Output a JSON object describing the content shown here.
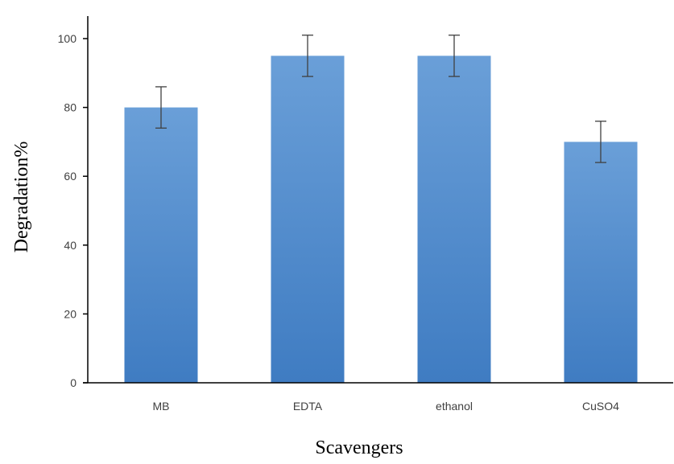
{
  "chart_data": {
    "type": "bar",
    "title": "",
    "xlabel": "Scavengers",
    "ylabel": "Degradation%",
    "categories": [
      "MB",
      "EDTA",
      "ethanol",
      "CuSO4"
    ],
    "values": [
      80,
      95,
      95,
      70
    ],
    "errors": [
      6,
      6,
      6,
      6
    ],
    "ylim": [
      0,
      100
    ],
    "yticks": [
      0,
      20,
      40,
      60,
      80,
      100
    ],
    "ytick_labels": [
      "0",
      "20",
      "40",
      "60",
      "80",
      "100"
    ],
    "grid": false,
    "legend": "none",
    "colors": {
      "bar_top": "#6a9fd8",
      "bar_bottom": "#3f7cc2",
      "axis": "#000000",
      "error_bar": "#404040"
    }
  }
}
